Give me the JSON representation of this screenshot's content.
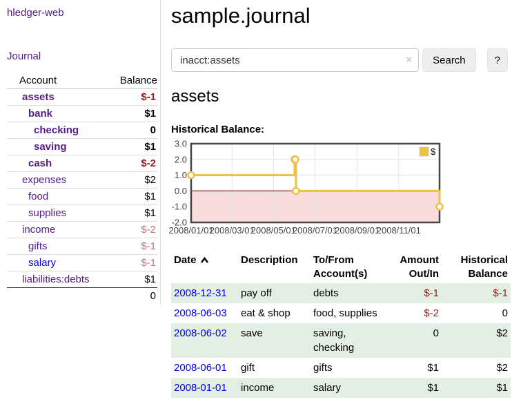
{
  "app": {
    "brand": "hledger-web"
  },
  "sidebar": {
    "nav_journal": "Journal",
    "table": {
      "headers": [
        "Account",
        "Balance"
      ],
      "rows": [
        {
          "account": "assets",
          "balance": "$-1",
          "depth": 1,
          "bold": true,
          "link_color": "purple",
          "balance_tone": "neg-strong"
        },
        {
          "account": "bank",
          "balance": "$1",
          "depth": 2,
          "bold": true,
          "link_color": "purple",
          "balance_tone": "pos"
        },
        {
          "account": "checking",
          "balance": "0",
          "depth": 3,
          "bold": true,
          "link_color": "purple",
          "balance_tone": "pos"
        },
        {
          "account": "saving",
          "balance": "$1",
          "depth": 3,
          "bold": true,
          "link_color": "purple",
          "balance_tone": "pos"
        },
        {
          "account": "cash",
          "balance": "$-2",
          "depth": 2,
          "bold": true,
          "link_color": "purple",
          "balance_tone": "neg-strong"
        },
        {
          "account": "expenses",
          "balance": "$2",
          "depth": 1,
          "bold": false,
          "link_color": "purple",
          "balance_tone": "pos"
        },
        {
          "account": "food",
          "balance": "$1",
          "depth": 2,
          "bold": false,
          "link_color": "purple",
          "balance_tone": "pos"
        },
        {
          "account": "supplies",
          "balance": "$1",
          "depth": 2,
          "bold": false,
          "link_color": "purple",
          "balance_tone": "pos"
        },
        {
          "account": "income",
          "balance": "$-2",
          "depth": 1,
          "bold": false,
          "link_color": "purple",
          "balance_tone": "neg-muted"
        },
        {
          "account": "gifts",
          "balance": "$-1",
          "depth": 2,
          "bold": false,
          "link_color": "purple",
          "balance_tone": "neg-muted"
        },
        {
          "account": "salary",
          "balance": "$-1",
          "depth": 2,
          "bold": false,
          "link_color": "blue",
          "balance_tone": "neg-muted"
        },
        {
          "account": "liabilities:debts",
          "balance": "$1",
          "depth": 1,
          "bold": false,
          "link_color": "purple",
          "balance_tone": "pos"
        }
      ],
      "total": "0"
    }
  },
  "main": {
    "title": "sample.journal",
    "search": {
      "value": "inacct:assets",
      "clear_glyph": "×",
      "button_label": "Search",
      "help_label": "?"
    },
    "account_heading": "assets",
    "section_label": "Historical Balance:"
  },
  "chart_data": {
    "type": "line",
    "style": "step",
    "title": "Historical Balance",
    "series": [
      {
        "name": "$",
        "color": "#EDC240",
        "points": [
          [
            "2008-01-01",
            1
          ],
          [
            "2008-06-01",
            2
          ],
          [
            "2008-06-02",
            2
          ],
          [
            "2008-06-03",
            0
          ],
          [
            "2008-12-31",
            -1
          ]
        ]
      }
    ],
    "xlim": [
      "2008-01-01",
      "2008-12-31"
    ],
    "ylim": [
      -2,
      3
    ],
    "yticks": [
      {
        "value": 3,
        "label": "3.0"
      },
      {
        "value": 2,
        "label": "2.0"
      },
      {
        "value": 1,
        "label": "1.0"
      },
      {
        "value": 0,
        "label": "0.0"
      },
      {
        "value": -1,
        "label": "-1.0"
      },
      {
        "value": -2,
        "label": "-2.0"
      }
    ],
    "xticks": [
      {
        "date": "2008-01-01",
        "label": "2008/01/01"
      },
      {
        "date": "2008-03-01",
        "label": "2008/03/01"
      },
      {
        "date": "2008-05-01",
        "label": "2008/05/01"
      },
      {
        "date": "2008-07-01",
        "label": "2008/07/01"
      },
      {
        "date": "2008-09-01",
        "label": "2008/09/01"
      },
      {
        "date": "2008-11-01",
        "label": "2008/11/01"
      }
    ],
    "legend": {
      "label": "$",
      "position": "top-right"
    },
    "grid": true,
    "negative_region_color": "#fadcdc",
    "zero_line_color": "#8b2222",
    "grid_color": "#e3e3e3",
    "border_color": "#454545"
  },
  "register": {
    "headers": [
      {
        "label": "Date",
        "sorted": "asc"
      },
      {
        "label": "Description"
      },
      {
        "label": "To/From Account(s)"
      },
      {
        "label": "Amount Out/In"
      },
      {
        "label": "Historical Balance"
      }
    ],
    "rows": [
      {
        "date": "2008-12-31",
        "description": "pay off",
        "accounts": "debts",
        "amount": "$-1",
        "amount_negative": true,
        "balance": "$-1",
        "balance_negative": true
      },
      {
        "date": "2008-06-03",
        "description": "eat & shop",
        "accounts": "food, supplies",
        "amount": "$-2",
        "amount_negative": true,
        "balance": "0",
        "balance_negative": false
      },
      {
        "date": "2008-06-02",
        "description": "save",
        "accounts": "saving, checking",
        "amount": "0",
        "amount_negative": false,
        "balance": "$2",
        "balance_negative": false
      },
      {
        "date": "2008-06-01",
        "description": "gift",
        "accounts": "gifts",
        "amount": "$1",
        "amount_negative": false,
        "balance": "$2",
        "balance_negative": false
      },
      {
        "date": "2008-01-01",
        "description": "income",
        "accounts": "salary",
        "amount": "$1",
        "amount_negative": false,
        "balance": "$1",
        "balance_negative": false
      }
    ]
  },
  "colors": {
    "link_purple": "#551A8B",
    "link_blue": "#0000EE",
    "negative_strong": "#8f1f1f",
    "negative_muted": "#bd7878",
    "register_negative": "#941f1f",
    "row_stripe_green": "#e3efe3",
    "chart_series_gold": "#EDC240",
    "chart_negative_region": "#fadcdc",
    "chart_zero_line": "#8b2222"
  }
}
